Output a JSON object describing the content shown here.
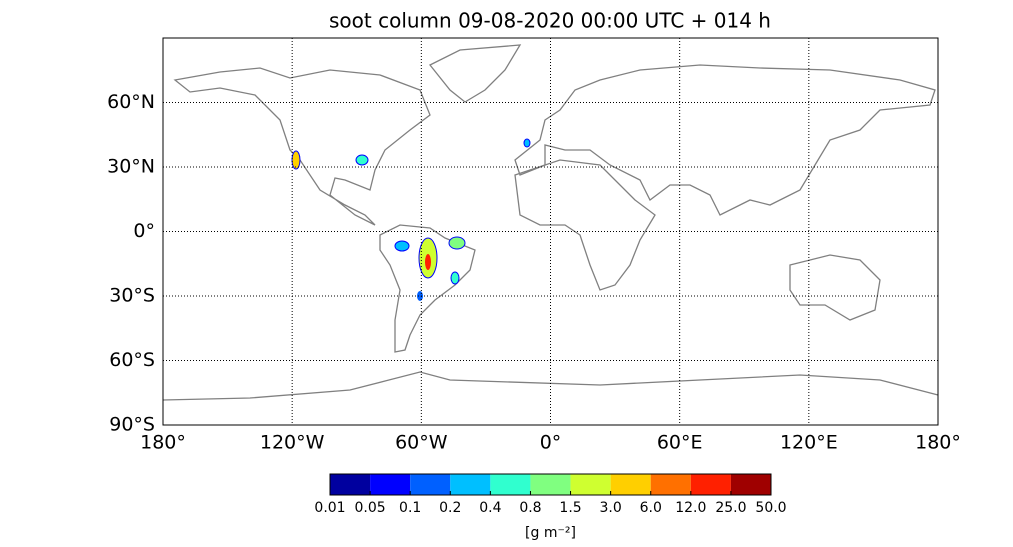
{
  "chart_data": {
    "type": "map",
    "title": "soot column 09-08-2020 00:00 UTC + 014 h",
    "xlim": [
      -180,
      180
    ],
    "ylim": [
      -90,
      90
    ],
    "xticks": [
      {
        "value": -180,
        "label": "180°"
      },
      {
        "value": -120,
        "label": "120°W"
      },
      {
        "value": -60,
        "label": "60°W"
      },
      {
        "value": 0,
        "label": "0°"
      },
      {
        "value": 60,
        "label": "60°E"
      },
      {
        "value": 120,
        "label": "120°E"
      },
      {
        "value": 180,
        "label": "180°"
      }
    ],
    "yticks": [
      {
        "value": -90,
        "label": "90°S"
      },
      {
        "value": -60,
        "label": "60°S"
      },
      {
        "value": -30,
        "label": "30°S"
      },
      {
        "value": 0,
        "label": "0°"
      },
      {
        "value": 30,
        "label": "30°N"
      },
      {
        "value": 60,
        "label": "60°N"
      }
    ],
    "grid": true,
    "colorbar": {
      "label": "[g m⁻²]",
      "bounds": [
        0.01,
        0.05,
        0.1,
        0.2,
        0.4,
        0.8,
        1.5,
        {
          "value": 3,
          "label": "3.0"
        },
        {
          "value": 6,
          "label": "6.0"
        },
        {
          "value": 12,
          "label": "12.0"
        },
        {
          "value": 25,
          "label": "25.0"
        },
        {
          "value": 50,
          "label": "50.0"
        }
      ],
      "colors": [
        "#00009f",
        "#0000ff",
        "#0060ff",
        "#00bfff",
        "#30ffcf",
        "#80ff80",
        "#cfff30",
        "#ffcf00",
        "#ff7000",
        "#ff2000",
        "#9f0000"
      ]
    }
  }
}
